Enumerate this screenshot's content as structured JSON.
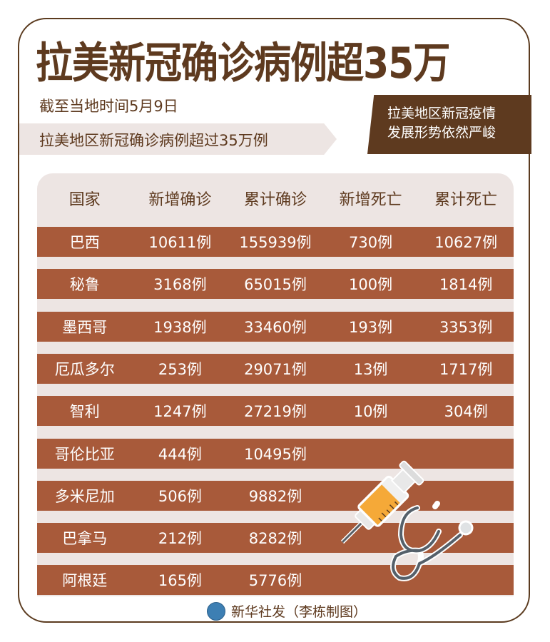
{
  "title": "拉美新冠确诊病例超35万",
  "date_note": "截至当地时间5月9日",
  "ribbon_text": "拉美地区新冠确诊病例超过35万例",
  "banner_lines": [
    "拉美地区新冠疫情",
    "发展形势依然严峻"
  ],
  "table": {
    "headers": [
      "国家",
      "新增确诊",
      "累计确诊",
      "新增死亡",
      "累计死亡"
    ],
    "rows": [
      [
        "巴西",
        "10611例",
        "155939例",
        "730例",
        "10627例"
      ],
      [
        "秘鲁",
        "3168例",
        "65015例",
        "100例",
        "1814例"
      ],
      [
        "墨西哥",
        "1938例",
        "33460例",
        "193例",
        "3353例"
      ],
      [
        "厄瓜多尔",
        "253例",
        "29071例",
        "13例",
        "1717例"
      ],
      [
        "智利",
        "1247例",
        "27219例",
        "10例",
        "304例"
      ],
      [
        "哥伦比亚",
        "444例",
        "10495例",
        "",
        ""
      ],
      [
        "多米尼加",
        "506例",
        "9882例",
        "",
        ""
      ],
      [
        "巴拿马",
        "212例",
        "8282例",
        "",
        ""
      ],
      [
        "阿根廷",
        "165例",
        "5776例",
        "",
        ""
      ]
    ]
  },
  "footer": "新华社发（李栋制图）",
  "icons": [
    "syringe-icon",
    "stethoscope-icon",
    "xinhua-logo-icon"
  ],
  "colors": {
    "title": "#5e3a1f",
    "row": "#a85a3a",
    "panel": "#ede5e3",
    "logo": "#3d7fb3"
  }
}
